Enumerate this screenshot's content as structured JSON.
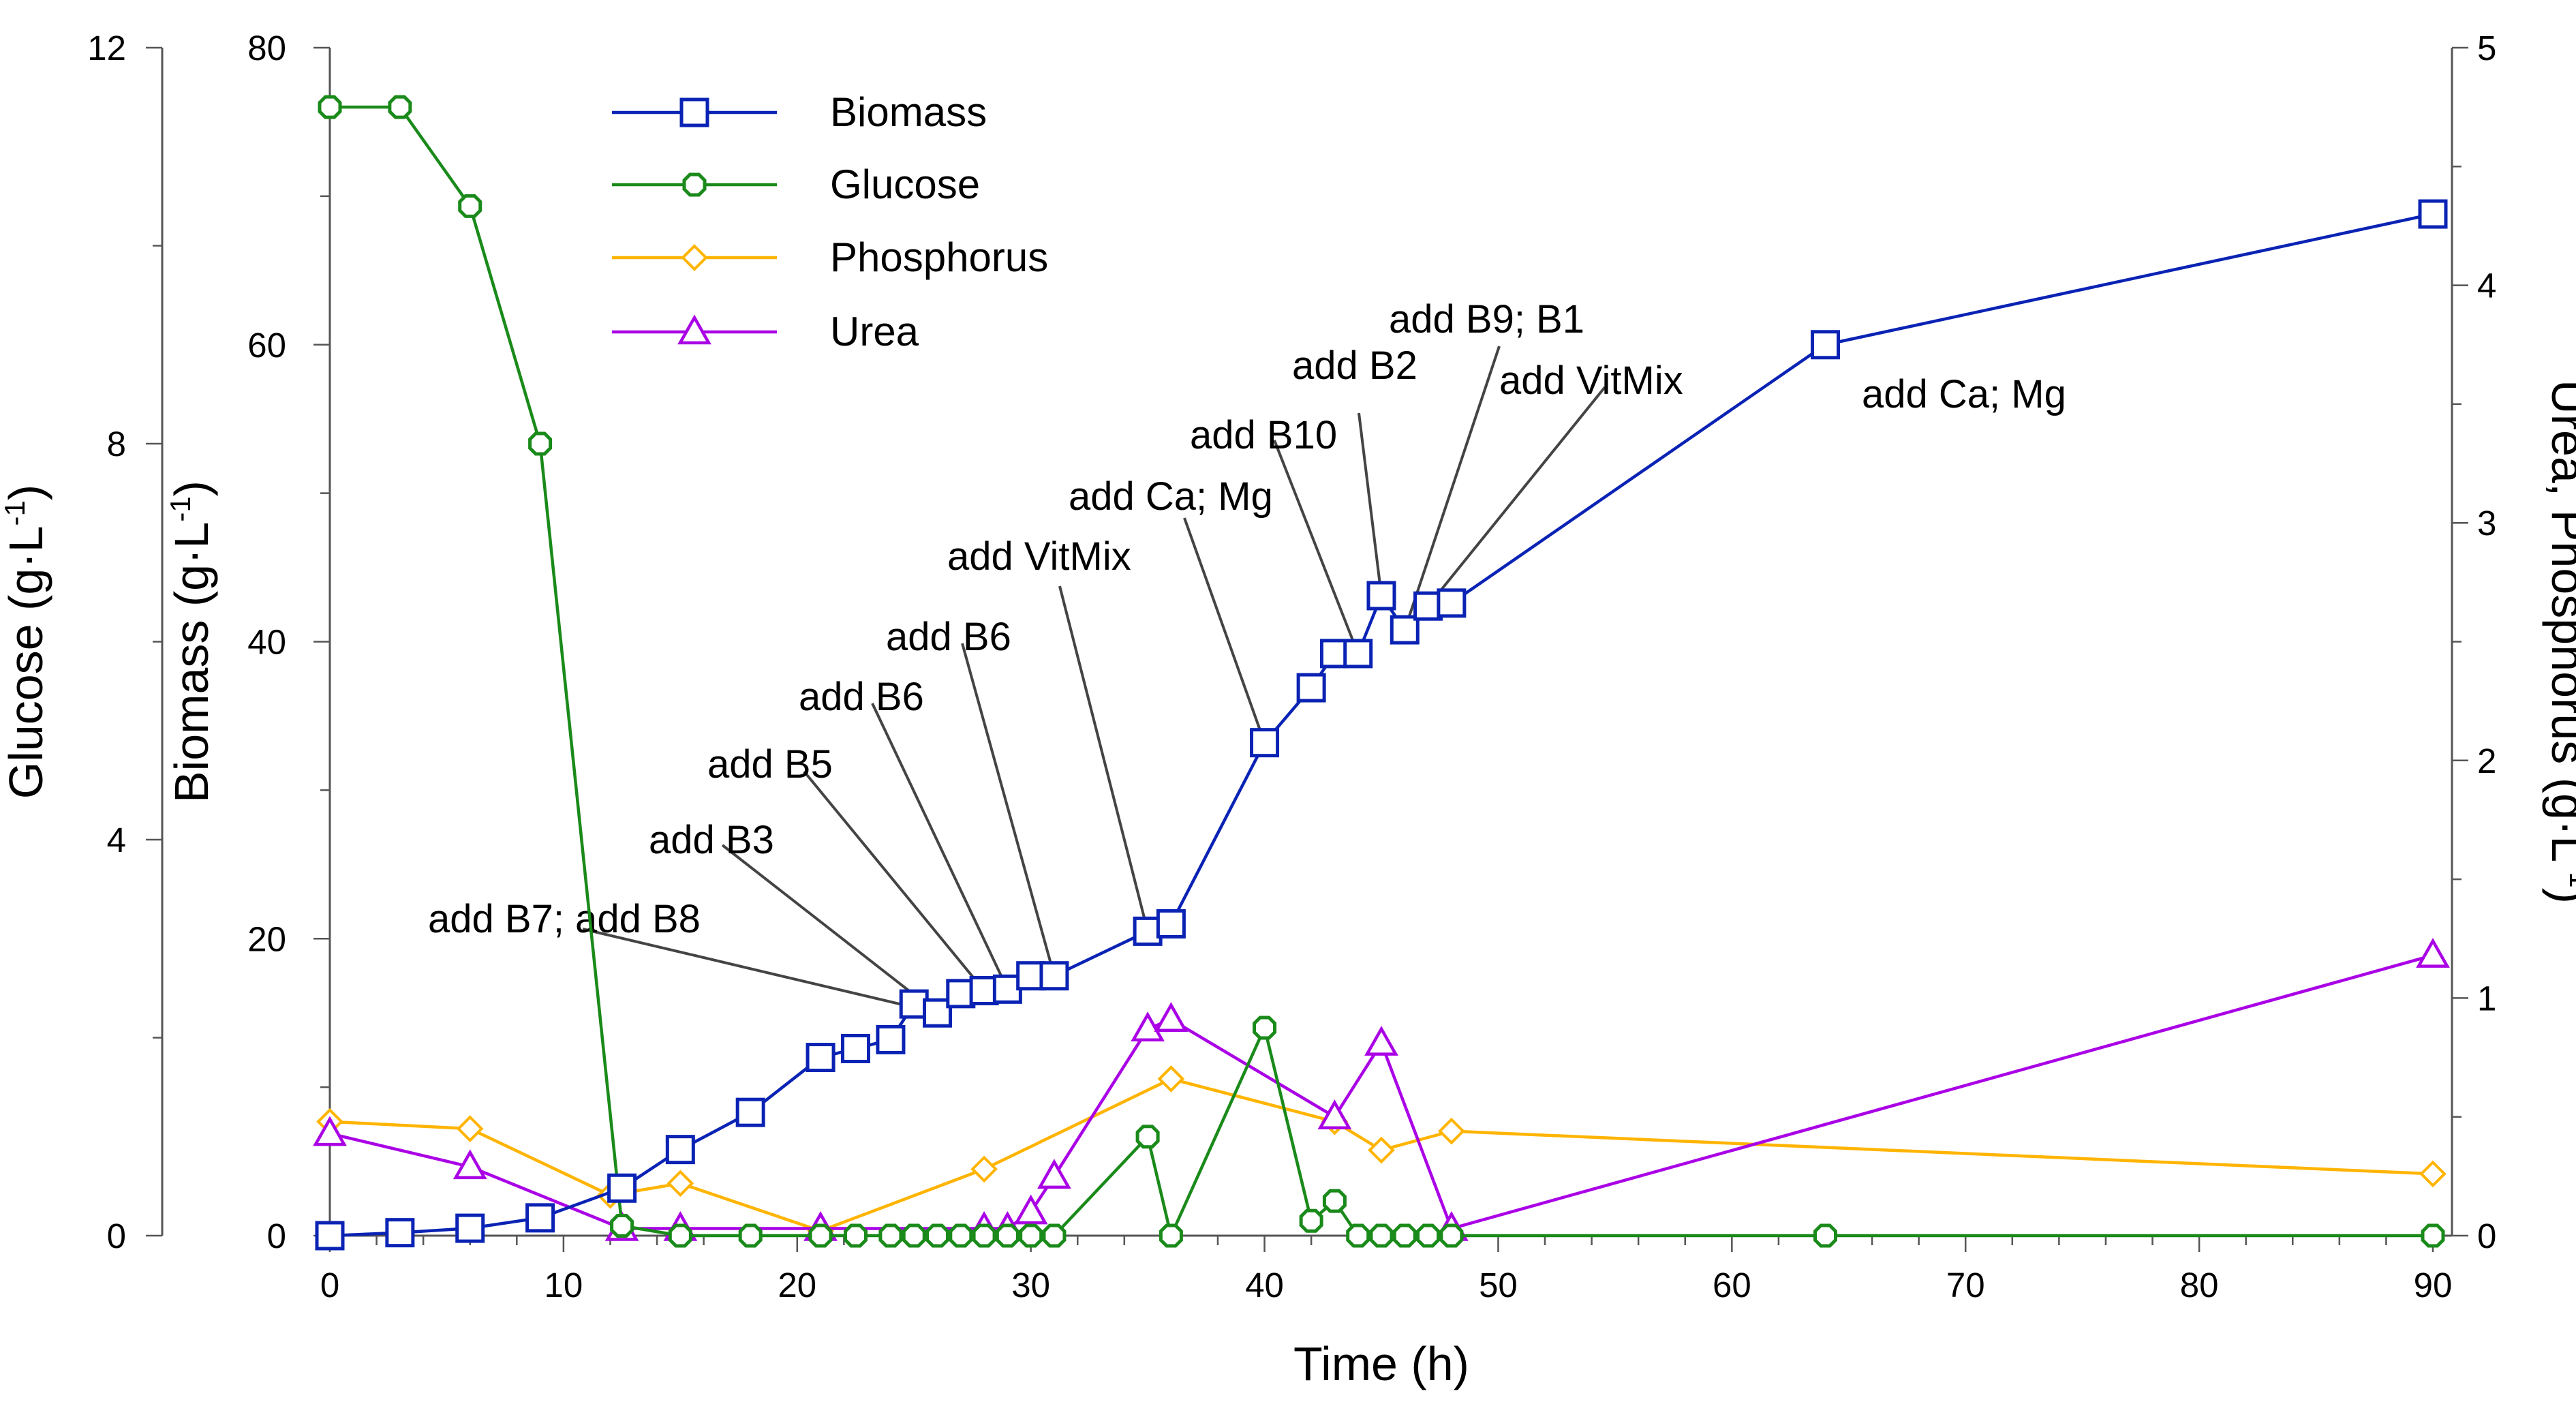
{
  "chart_data": {
    "type": "line",
    "xlabel": "Time (h)",
    "xlim": [
      0,
      90
    ],
    "x_ticks": [
      "0",
      "10",
      "20",
      "30",
      "40",
      "50",
      "60",
      "70",
      "80",
      "90"
    ],
    "axes": {
      "glucose": {
        "label_base": "Glucose (g·L",
        "label_exp": "-1",
        "label_close": ")",
        "ylim": [
          0,
          12
        ],
        "ticks": [
          "0",
          "4",
          "8",
          "12"
        ]
      },
      "biomass": {
        "label_base": "Biomass (g·L",
        "label_exp": "-1",
        "label_close": ")",
        "ylim": [
          0,
          80
        ],
        "ticks": [
          "0",
          "20",
          "40",
          "60",
          "80"
        ]
      },
      "urea_phosphorus": {
        "label_base": "Urea, Phosphorus (g·L",
        "label_exp": "-1",
        "label_close": ")",
        "ylim": [
          0,
          5
        ],
        "ticks": [
          "0",
          "1",
          "2",
          "3",
          "4",
          "5"
        ]
      }
    },
    "series": [
      {
        "name": "Biomass",
        "axis": "biomass",
        "color": "#0A23B4",
        "marker": "square",
        "x": [
          0,
          3,
          6,
          9,
          12.5,
          15,
          18,
          21,
          22.5,
          24,
          25,
          26,
          27,
          28,
          29,
          30,
          31,
          35,
          36,
          40,
          42,
          43,
          44,
          45,
          46,
          47,
          48,
          64,
          90
        ],
        "y": [
          0,
          0.2,
          0.5,
          1.2,
          3.2,
          5.8,
          8.3,
          12,
          12.6,
          13.2,
          15.6,
          15,
          16.3,
          16.5,
          16.6,
          17.5,
          17.5,
          20.5,
          21,
          33.2,
          36.9,
          39.2,
          39.2,
          43.1,
          40.8,
          42.4,
          42.6,
          60,
          68.8
        ]
      },
      {
        "name": "Glucose",
        "axis": "glucose",
        "color": "#1A8A1A",
        "marker": "octagon",
        "x": [
          0,
          3,
          6,
          9,
          12.5,
          15,
          18,
          21,
          22.5,
          24,
          25,
          26,
          27,
          28,
          29,
          30,
          31,
          35,
          36,
          40,
          42,
          43,
          44,
          45,
          46,
          47,
          48,
          64,
          90
        ],
        "y": [
          11.4,
          11.4,
          10.4,
          8,
          0.1,
          0,
          0,
          0,
          0,
          0,
          0,
          0,
          0,
          0,
          0,
          0,
          0,
          1,
          0,
          2.1,
          0.15,
          0.35,
          0,
          0,
          0,
          0,
          0,
          0,
          0
        ]
      },
      {
        "name": "Phosphorus",
        "axis": "urea_phosphorus",
        "color": "#FFB400",
        "marker": "diamond",
        "x": [
          0,
          6,
          12,
          15,
          21,
          28,
          36,
          43,
          45,
          48,
          90
        ],
        "y": [
          0.48,
          0.45,
          0.17,
          0.22,
          0.02,
          0.28,
          0.66,
          0.48,
          0.36,
          0.44,
          0.26
        ]
      },
      {
        "name": "Urea",
        "axis": "urea_phosphorus",
        "color": "#AA00E6",
        "marker": "triangle",
        "x": [
          0,
          6,
          12.5,
          15,
          21,
          28,
          29,
          30,
          31,
          35,
          36,
          43,
          45,
          48,
          90
        ],
        "y": [
          0.43,
          0.29,
          0.03,
          0.03,
          0.03,
          0.03,
          0.03,
          0.1,
          0.25,
          0.87,
          0.91,
          0.5,
          0.81,
          0.03,
          1.18
        ]
      }
    ],
    "legend": {
      "position": "top-left",
      "entries": [
        "Biomass",
        "Glucose",
        "Phosphorus",
        "Urea"
      ]
    },
    "annotations": [
      {
        "text": "add B7; add B8",
        "x": 26,
        "y": 15
      },
      {
        "text": "add B3",
        "x": 26,
        "y": 15
      },
      {
        "text": "add B5",
        "x": 28,
        "y": 16.5
      },
      {
        "text": "add B6",
        "x": 29,
        "y": 16.6
      },
      {
        "text": "add B6",
        "x": 31,
        "y": 17.5
      },
      {
        "text": "add VitMix",
        "x": 35,
        "y": 20.5
      },
      {
        "text": "add Ca; Mg",
        "x": 40,
        "y": 33.2
      },
      {
        "text": "add B10",
        "x": 44,
        "y": 39.2
      },
      {
        "text": "add B2",
        "x": 45,
        "y": 43.1
      },
      {
        "text": "add B9; B1",
        "x": 46,
        "y": 40.8
      },
      {
        "text": "add VitMix",
        "x": 47,
        "y": 42.4
      },
      {
        "text": "add Ca; Mg",
        "x": 64,
        "y": 60
      }
    ]
  }
}
